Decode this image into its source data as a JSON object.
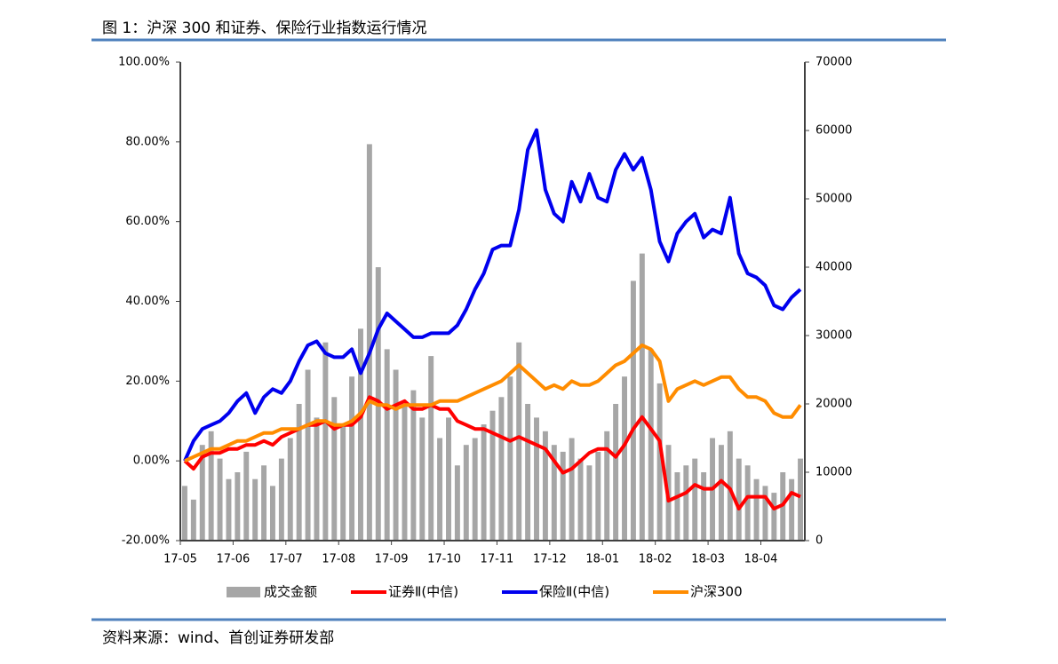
{
  "title": "图 1：沪深 300 和证券、保险行业指数运行情况",
  "source": "资料来源：wind、首创证券研发部",
  "chart_data": {
    "type": "bar-line",
    "categories": [
      "17-05",
      null,
      null,
      null,
      null,
      null,
      "17-06",
      null,
      null,
      null,
      null,
      null,
      "17-07",
      null,
      null,
      null,
      null,
      null,
      "17-08",
      null,
      null,
      null,
      null,
      null,
      "17-09",
      null,
      null,
      null,
      null,
      null,
      "17-10",
      null,
      null,
      null,
      null,
      null,
      "17-11",
      null,
      null,
      null,
      null,
      null,
      "17-12",
      null,
      null,
      null,
      null,
      null,
      "18-01",
      null,
      null,
      null,
      null,
      null,
      "18-02",
      null,
      null,
      null,
      null,
      null,
      "18-03",
      null,
      null,
      null,
      null,
      null,
      "18-04",
      null,
      null,
      null,
      null
    ],
    "ylim": [
      -20,
      100
    ],
    "yticks": [
      {
        "value": -20,
        "label": "-20.00%"
      },
      {
        "value": 0,
        "label": "0.00%"
      },
      {
        "value": 20,
        "label": "20.00%"
      },
      {
        "value": 40,
        "label": "40.00%"
      },
      {
        "value": 60,
        "label": "60.00%"
      },
      {
        "value": 80,
        "label": "80.00%"
      },
      {
        "value": 100,
        "label": "100.00%"
      }
    ],
    "y2lim": [
      0,
      70000
    ],
    "y2ticks": [
      0,
      10000,
      20000,
      30000,
      40000,
      50000,
      60000,
      70000
    ],
    "series": [
      {
        "name": "成交金额",
        "type": "bar",
        "axis": "y2",
        "color": "#a6a6a6",
        "values": [
          8000,
          6000,
          14000,
          16000,
          12000,
          9000,
          10000,
          13000,
          9000,
          11000,
          8000,
          12000,
          15000,
          20000,
          25000,
          18000,
          29000,
          21000,
          17000,
          24000,
          31000,
          58000,
          40000,
          28000,
          25000,
          20000,
          22000,
          18000,
          27000,
          15000,
          18000,
          11000,
          14000,
          15000,
          17000,
          19000,
          21000,
          24000,
          29000,
          20000,
          18000,
          16000,
          14000,
          13000,
          15000,
          12000,
          11000,
          13000,
          16000,
          20000,
          24000,
          38000,
          42000,
          28000,
          23000,
          14000,
          10000,
          11000,
          12000,
          10000,
          15000,
          14000,
          16000,
          12000,
          11000,
          9000,
          8000,
          7000,
          10000,
          9000,
          12000
        ]
      },
      {
        "name": "证券Ⅱ(中信)",
        "type": "line",
        "color": "#ff0000",
        "values": [
          0,
          -2,
          1,
          2,
          2,
          3,
          3,
          4,
          4,
          5,
          4,
          6,
          7,
          8,
          9,
          9,
          10,
          8,
          9,
          9,
          11,
          16,
          15,
          13,
          14,
          15,
          13,
          13,
          14,
          13,
          13,
          10,
          9,
          8,
          8,
          7,
          6,
          5,
          6,
          5,
          4,
          3,
          0,
          -3,
          -2,
          0,
          2,
          3,
          3,
          1,
          4,
          8,
          11,
          8,
          5,
          -10,
          -9,
          -8,
          -6,
          -7,
          -7,
          -5,
          -7,
          -12,
          -9,
          -9,
          -9,
          -12,
          -11,
          -8,
          -9
        ]
      },
      {
        "name": "保险Ⅱ(中信)",
        "type": "line",
        "color": "#0000ee",
        "values": [
          0,
          5,
          8,
          9,
          10,
          12,
          15,
          17,
          12,
          16,
          18,
          17,
          20,
          25,
          29,
          30,
          27,
          26,
          26,
          28,
          22,
          27,
          33,
          37,
          35,
          33,
          31,
          31,
          32,
          32,
          32,
          34,
          38,
          43,
          47,
          53,
          54,
          54,
          63,
          78,
          83,
          68,
          62,
          60,
          70,
          65,
          72,
          66,
          65,
          73,
          77,
          73,
          76,
          68,
          55,
          50,
          57,
          60,
          62,
          56,
          58,
          57,
          66,
          52,
          47,
          46,
          44,
          39,
          38,
          41,
          43
        ]
      },
      {
        "name": "沪深300",
        "type": "line",
        "color": "#ff8c00",
        "values": [
          0,
          1,
          2,
          3,
          3,
          4,
          5,
          5,
          6,
          7,
          7,
          8,
          8,
          8,
          9,
          10,
          10,
          9,
          9,
          10,
          12,
          15,
          14,
          14,
          13,
          14,
          14,
          14,
          14,
          15,
          15,
          15,
          16,
          17,
          18,
          19,
          20,
          22,
          24,
          22,
          20,
          18,
          19,
          18,
          20,
          19,
          19,
          20,
          22,
          24,
          25,
          27,
          29,
          28,
          25,
          15,
          18,
          19,
          20,
          19,
          20,
          21,
          21,
          18,
          16,
          16,
          15,
          12,
          11,
          11,
          14
        ]
      }
    ]
  }
}
